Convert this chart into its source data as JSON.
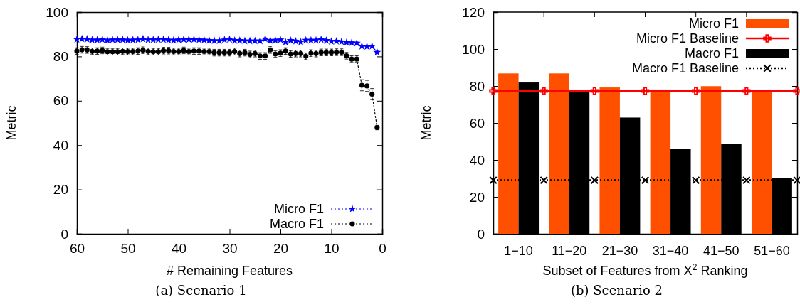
{
  "chart_data": [
    {
      "type": "line",
      "xlabel": "# Remaining Features",
      "ylabel": "Metric",
      "annotations": [
        "(a) Scenario 1"
      ],
      "x": [
        60,
        59,
        58,
        57,
        56,
        55,
        54,
        53,
        52,
        51,
        50,
        49,
        48,
        47,
        46,
        45,
        44,
        43,
        42,
        41,
        40,
        39,
        38,
        37,
        36,
        35,
        34,
        33,
        32,
        31,
        30,
        29,
        28,
        27,
        26,
        25,
        24,
        23,
        22,
        21,
        20,
        19,
        18,
        17,
        16,
        15,
        14,
        13,
        12,
        11,
        10,
        9,
        8,
        7,
        6,
        5,
        4,
        3,
        2,
        1
      ],
      "xlim": [
        60,
        0
      ],
      "xticks": [
        60,
        50,
        40,
        30,
        20,
        10,
        0
      ],
      "ylim": [
        0,
        100
      ],
      "yticks": [
        0,
        20,
        40,
        60,
        80,
        100
      ],
      "grid": false,
      "legend": "bottom right",
      "line_style": "dotted",
      "series": [
        {
          "name": "Micro F1",
          "color": "#0000ff",
          "marker": "star",
          "values": [
            87.7,
            87.9,
            87.8,
            87.4,
            87.4,
            87.6,
            87.3,
            87.5,
            87.5,
            87.5,
            87.3,
            87.4,
            87.5,
            87.9,
            87.5,
            87.5,
            87.6,
            87.6,
            87.4,
            87.3,
            87.5,
            87.7,
            87.7,
            87.7,
            87.5,
            87.4,
            87.2,
            87.1,
            87.1,
            87.5,
            87.7,
            87.2,
            87.2,
            87.0,
            87.0,
            87.0,
            87.0,
            87.9,
            87.2,
            87.3,
            87.5,
            86.5,
            87.2,
            86.9,
            86.5,
            87.3,
            87.3,
            87.3,
            87.6,
            87.2,
            86.8,
            86.9,
            86.6,
            86.3,
            86.2,
            86.0,
            84.6,
            84.5,
            84.6,
            81.9
          ],
          "errors": [
            0.5,
            0.5,
            0.5,
            0.5,
            0.5,
            0.5,
            0.5,
            0.5,
            0.5,
            0.5,
            0.5,
            0.5,
            0.5,
            0.5,
            0.5,
            0.5,
            0.5,
            0.5,
            0.5,
            0.5,
            0.5,
            0.5,
            0.5,
            0.5,
            0.5,
            0.5,
            0.5,
            0.5,
            0.5,
            0.5,
            0.5,
            0.5,
            0.5,
            0.5,
            0.5,
            0.5,
            0.5,
            0.5,
            0.5,
            0.5,
            0.5,
            0.5,
            0.5,
            0.5,
            0.5,
            0.5,
            0.5,
            0.5,
            0.5,
            0.5,
            0.5,
            0.5,
            0.5,
            0.5,
            0.5,
            0.5,
            0.5,
            0.5,
            0.5,
            0.5
          ]
        },
        {
          "name": "Macro F1",
          "color": "#000000",
          "marker": "circle",
          "values": [
            82.4,
            83.0,
            82.9,
            82.3,
            82.4,
            82.7,
            82.1,
            82.1,
            82.1,
            82.3,
            82.2,
            82.2,
            82.4,
            82.8,
            82.3,
            82.1,
            82.1,
            82.6,
            82.6,
            82.2,
            82.2,
            82.7,
            82.2,
            82.4,
            82.4,
            82.2,
            82.2,
            81.7,
            81.7,
            81.7,
            81.7,
            82.2,
            81.3,
            81.7,
            80.9,
            81.3,
            80.2,
            80.2,
            82.9,
            81.1,
            81.5,
            82.4,
            81.1,
            81.3,
            81.3,
            80.1,
            81.5,
            81.3,
            81.8,
            81.8,
            81.8,
            81.9,
            81.9,
            80.3,
            78.8,
            78.8,
            67.0,
            66.7,
            63.0,
            47.9
          ],
          "errors": [
            1.5,
            1.5,
            1.5,
            1.5,
            1.5,
            1.5,
            1.5,
            1.5,
            1.5,
            1.5,
            1.5,
            1.5,
            1.5,
            1.5,
            1.5,
            1.5,
            1.5,
            1.5,
            1.5,
            1.5,
            1.5,
            1.5,
            1.5,
            1.5,
            1.5,
            1.5,
            1.5,
            1.5,
            1.5,
            1.5,
            1.5,
            1.5,
            1.5,
            1.5,
            1.5,
            1.5,
            1.5,
            1.5,
            1.5,
            1.5,
            1.5,
            1.5,
            1.5,
            1.5,
            1.5,
            1.5,
            1.5,
            1.5,
            1.5,
            1.5,
            1.5,
            1.5,
            1.5,
            1.5,
            1.5,
            1.5,
            2.5,
            2.5,
            2.5,
            1
          ]
        }
      ]
    },
    {
      "type": "bar",
      "xlabel": "Subset of Features from X$^{2}$ Ranking",
      "ylabel": "Metric",
      "annotations": [
        "(b) Scenario 2"
      ],
      "categories": [
        "1−10",
        "11−20",
        "21−30",
        "31−40",
        "41−50",
        "51−60"
      ],
      "ylim": [
        0,
        120
      ],
      "yticks": [
        0,
        20,
        40,
        60,
        80,
        100,
        120
      ],
      "grid": false,
      "legend": "top right",
      "series": [
        {
          "name": "Micro F1",
          "color": "#ff5000",
          "values": [
            86.8,
            86.8,
            79.2,
            78.1,
            79.9,
            77.2
          ]
        },
        {
          "name": "Macro F1",
          "color": "#000000",
          "values": [
            81.9,
            78.0,
            62.9,
            46.1,
            48.5,
            30.1
          ]
        }
      ],
      "ref_lines": [
        {
          "axis": "y",
          "value": 77.3,
          "label": "Micro F1 Baseline",
          "color": "#ff0000",
          "line_style": "solid"
        },
        {
          "axis": "y",
          "value": 29.0,
          "label": "Macro F1 Baseline",
          "color": "#000000",
          "line_style": "dotted"
        }
      ]
    }
  ]
}
